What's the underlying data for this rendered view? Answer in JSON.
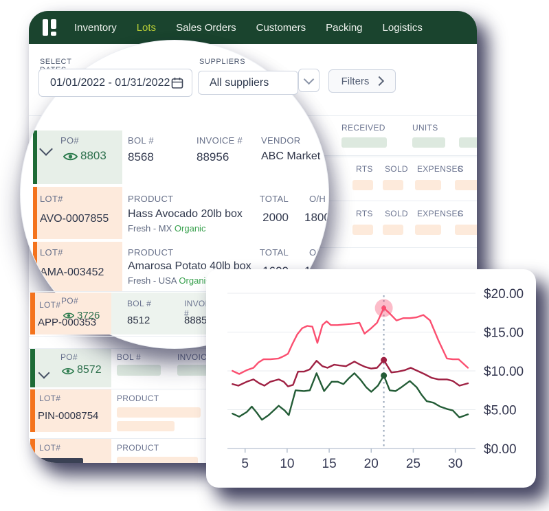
{
  "nav": {
    "items": [
      "Inventory",
      "Lots",
      "Sales Orders",
      "Customers",
      "Packing",
      "Logistics"
    ],
    "active_item": "Lots"
  },
  "filters": {
    "dates_label": "SELECT DATES",
    "date_range": "01/01/2022 - 01/31/2022",
    "suppliers_label": "SUPPLIERS",
    "suppliers_value": "All suppliers",
    "filters_button_label": "Filters"
  },
  "labels": {
    "po": "PO#",
    "lot": "LOT#",
    "bol": "BOL #",
    "invoice": "INVOICE #",
    "vendor": "VENDOR",
    "product": "PRODUCT",
    "total": "TOTAL",
    "oh": "O/H",
    "received": "RECEIVED",
    "units": "UNITS",
    "rts": "RTS",
    "sold": "SOLD",
    "expenses": "EXPENSES",
    "c_clipped": "C"
  },
  "lens": {
    "po": {
      "number": "8803",
      "bol": "8568",
      "invoice": "88956",
      "vendor": "ABC Market"
    },
    "lots": [
      {
        "lot": "AVO-0007855",
        "product": "Hass Avocado 20lb box",
        "origin": "Fresh - MX",
        "tag": "Organic",
        "total": "2000",
        "oh": "1800"
      },
      {
        "lot": "AMA-003452",
        "product": "Amarosa Potato 40lb box",
        "origin": "Fresh - USA",
        "tag": "Organic",
        "total": "1600",
        "oh": "10"
      }
    ]
  },
  "rows": {
    "po_3726": {
      "lot_overlap": "APP-000353",
      "number": "3726",
      "bol": "8512",
      "invoice": "8885"
    },
    "po_8572": {
      "number": "8572"
    },
    "lot_pin": {
      "lot": "PIN-0008754"
    }
  },
  "chart_data": {
    "type": "line",
    "title": "",
    "xlabel": "",
    "ylabel": "",
    "xlim": [
      2.9,
      32.4
    ],
    "ylim": [
      0,
      20
    ],
    "grid": "horizontal",
    "legend": "none",
    "x_ticks": [
      5,
      10,
      15,
      20,
      25,
      30
    ],
    "y_ticks": [
      0,
      5,
      10,
      15,
      20
    ],
    "y_tick_labels": [
      "$0.00",
      "$5.00",
      "$10.00",
      "$15.00",
      "$20.00"
    ],
    "annotation": {
      "x": 21.5,
      "marker_values": [
        18.1,
        11.4,
        9.4
      ],
      "halo_color": "#f85070",
      "halo_opacity": 0.38,
      "line_color": "#98a7ba"
    },
    "series": [
      {
        "name": "series-pink",
        "color": "#fb4f70",
        "points": [
          [
            3.5,
            10
          ],
          [
            4.3,
            9.6
          ],
          [
            5.2,
            10.1
          ],
          [
            6,
            10.4
          ],
          [
            6.6,
            11.1
          ],
          [
            7.2,
            11.5
          ],
          [
            8,
            11.5
          ],
          [
            9,
            11.6
          ],
          [
            9.6,
            11.9
          ],
          [
            10.1,
            12.2
          ],
          [
            10.6,
            13.4
          ],
          [
            11.2,
            14.7
          ],
          [
            11.8,
            15.5
          ],
          [
            12.4,
            15.8
          ],
          [
            13,
            15.7
          ],
          [
            13.6,
            13.6
          ],
          [
            14.2,
            15.9
          ],
          [
            14.7,
            16.4
          ],
          [
            15.2,
            15.9
          ],
          [
            16,
            15.9
          ],
          [
            17,
            16
          ],
          [
            18,
            16.1
          ],
          [
            18.6,
            16.2
          ],
          [
            19.2,
            14.8
          ],
          [
            20,
            15.5
          ],
          [
            20.7,
            16.2
          ],
          [
            21.5,
            18.1
          ],
          [
            22.2,
            17.4
          ],
          [
            23,
            16.5
          ],
          [
            23.8,
            16.8
          ],
          [
            24.6,
            16.8
          ],
          [
            25.4,
            16.9
          ],
          [
            26.2,
            17.2
          ],
          [
            27,
            16.5
          ],
          [
            28,
            13.9
          ],
          [
            29,
            11.6
          ],
          [
            29.7,
            11.5
          ],
          [
            30.4,
            11.5
          ],
          [
            31.5,
            10.4
          ]
        ]
      },
      {
        "name": "series-maroon",
        "color": "#9f2143",
        "points": [
          [
            3.5,
            8.3
          ],
          [
            4.2,
            8.1
          ],
          [
            5.2,
            8.6
          ],
          [
            6,
            8.9
          ],
          [
            6.7,
            8.4
          ],
          [
            7.3,
            8.1
          ],
          [
            8,
            8.6
          ],
          [
            9,
            8.9
          ],
          [
            9.6,
            8.6
          ],
          [
            10.1,
            8
          ],
          [
            10.7,
            8.2
          ],
          [
            11.3,
            9.9
          ],
          [
            12,
            9.9
          ],
          [
            12.7,
            10.2
          ],
          [
            13.5,
            11.3
          ],
          [
            14.2,
            10.6
          ],
          [
            14.8,
            10.4
          ],
          [
            15.6,
            10.8
          ],
          [
            16.2,
            10.7
          ],
          [
            17,
            10.6
          ],
          [
            18,
            11.2
          ],
          [
            18.7,
            10.8
          ],
          [
            19.3,
            10.5
          ],
          [
            20,
            10.3
          ],
          [
            20.7,
            10.4
          ],
          [
            21.5,
            11.4
          ],
          [
            22.4,
            9.8
          ],
          [
            23.2,
            9.9
          ],
          [
            24,
            10.1
          ],
          [
            24.7,
            10.4
          ],
          [
            25.5,
            10
          ],
          [
            26.3,
            9.6
          ],
          [
            27.2,
            9.1
          ],
          [
            28,
            8.9
          ],
          [
            29,
            8.9
          ],
          [
            29.7,
            8.7
          ],
          [
            30.5,
            8.1
          ],
          [
            31.5,
            8.4
          ]
        ]
      },
      {
        "name": "series-green",
        "color": "#235c36",
        "points": [
          [
            3.5,
            4.5
          ],
          [
            4.3,
            4.1
          ],
          [
            5.2,
            4.7
          ],
          [
            5.8,
            5.4
          ],
          [
            6.4,
            4.6
          ],
          [
            7,
            3.7
          ],
          [
            7.8,
            4.3
          ],
          [
            8.5,
            5
          ],
          [
            9,
            5.5
          ],
          [
            9.7,
            4.9
          ],
          [
            10.2,
            4.3
          ],
          [
            11,
            7.5
          ],
          [
            12,
            7.4
          ],
          [
            12.7,
            7.5
          ],
          [
            13.5,
            9.7
          ],
          [
            14.4,
            7.4
          ],
          [
            15.3,
            8.6
          ],
          [
            16,
            8.6
          ],
          [
            16.7,
            8.3
          ],
          [
            17.3,
            9
          ],
          [
            18,
            9.7
          ],
          [
            18.7,
            8.9
          ],
          [
            19.4,
            7.9
          ],
          [
            20,
            7.3
          ],
          [
            20.8,
            8.1
          ],
          [
            21.5,
            9.4
          ],
          [
            22.2,
            7.5
          ],
          [
            22.9,
            7.4
          ],
          [
            23.6,
            7.9
          ],
          [
            24.6,
            8.7
          ],
          [
            25.4,
            7.9
          ],
          [
            26,
            6.9
          ],
          [
            26.6,
            6.1
          ],
          [
            27.4,
            5.9
          ],
          [
            28.2,
            5.4
          ],
          [
            29,
            5.1
          ],
          [
            29.7,
            4.9
          ],
          [
            30.5,
            4
          ],
          [
            31.5,
            4.4
          ]
        ]
      }
    ]
  }
}
